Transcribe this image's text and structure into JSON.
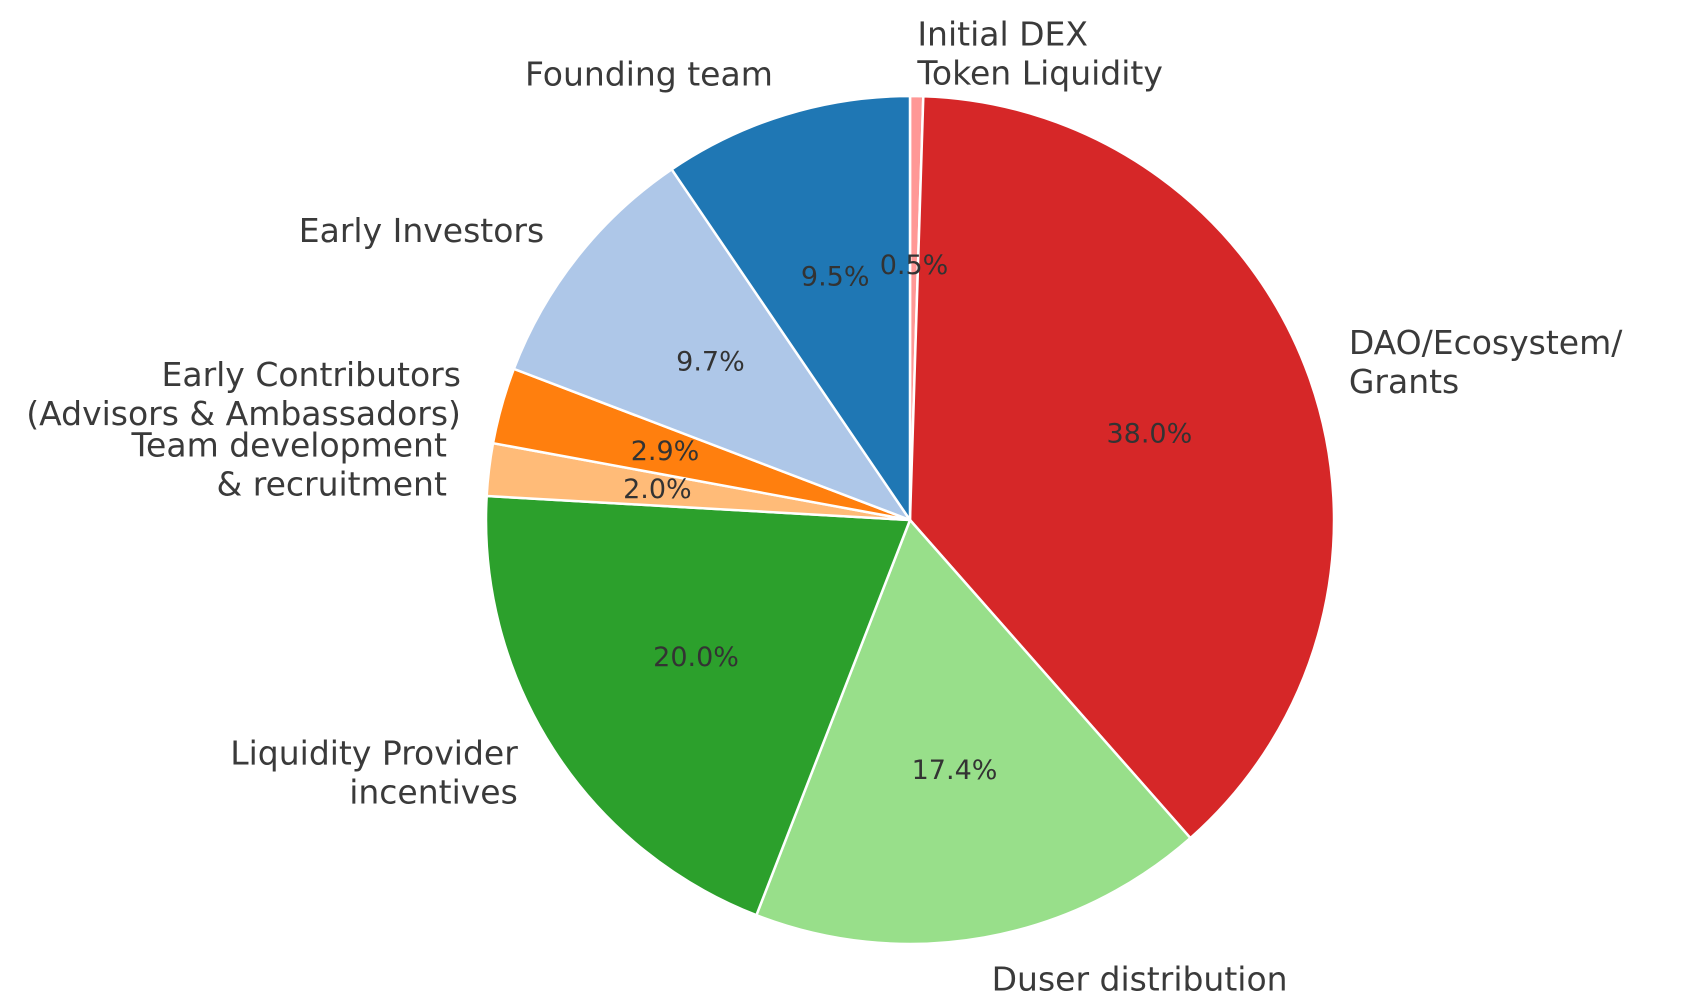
{
  "chart_data": {
    "type": "pie",
    "title": "",
    "slices": [
      {
        "label": "Initial DEX\nToken Liquidity",
        "value": 0.5,
        "percent_label": "0.5%",
        "color": "#ff9896"
      },
      {
        "label": "DAO/Ecosystem/\nGrants",
        "value": 38.0,
        "percent_label": "38.0%",
        "color": "#d62728"
      },
      {
        "label": "Duser distribution",
        "value": 17.4,
        "percent_label": "17.4%",
        "color": "#98df8a"
      },
      {
        "label": "Liquidity Provider\nincentives",
        "value": 20.0,
        "percent_label": "20.0%",
        "color": "#2ca02c"
      },
      {
        "label": "Team development\n& recruitment",
        "value": 2.0,
        "percent_label": "2.0%",
        "color": "#ffbb78"
      },
      {
        "label": "Early Contributors\n(Advisors & Ambassadors)",
        "value": 2.9,
        "percent_label": "2.9%",
        "color": "#ff7f0e"
      },
      {
        "label": "Early Investors",
        "value": 9.7,
        "percent_label": "9.7%",
        "color": "#aec7e8"
      },
      {
        "label": "Founding team",
        "value": 9.5,
        "percent_label": "9.5%",
        "color": "#1f77b4"
      }
    ],
    "start_angle": "12 o'clock",
    "direction": "clockwise",
    "legend": "none"
  }
}
